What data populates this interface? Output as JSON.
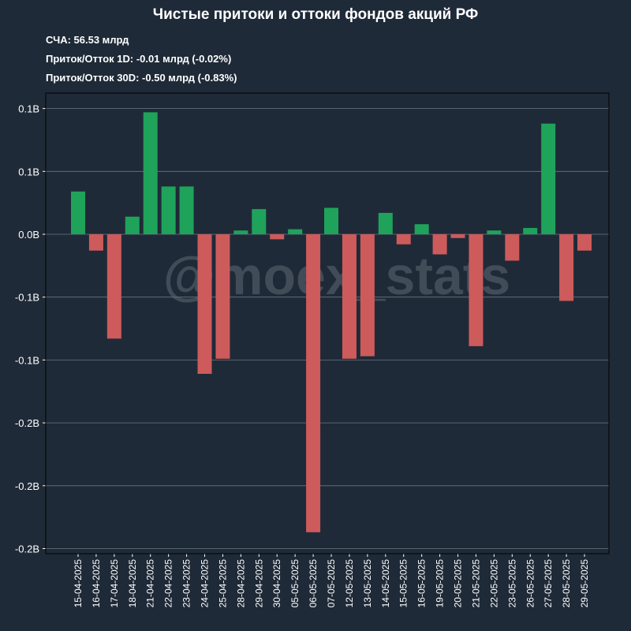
{
  "header": {
    "title": "Чистые притоки и оттоки фондов акций РФ",
    "aum": "СЧА: 56.53 млрд",
    "flow_1d": "Приток/Отток 1D: -0.01 млрд (-0.02%)",
    "flow_30d": "Приток/Отток 30D: -0.50 млрд (-0.83%)"
  },
  "watermark": "@moex_stats",
  "colors": {
    "background": "#1f2a38",
    "inflow": "#1fa35a",
    "outflow": "#cd5b5b",
    "grid": "#6b7682"
  },
  "chart_data": {
    "type": "bar",
    "title": "Чистые притоки и оттоки фондов акций РФ",
    "xlabel": "",
    "ylabel": "",
    "ylim": [
      -0.25,
      0.1
    ],
    "grid": true,
    "y_ticks": [
      {
        "value": 0.1,
        "label": "0.1B"
      },
      {
        "value": 0.05,
        "label": "0.1B"
      },
      {
        "value": 0.0,
        "label": "0.0B"
      },
      {
        "value": -0.05,
        "label": "-0.1B"
      },
      {
        "value": -0.1,
        "label": "-0.1B"
      },
      {
        "value": -0.15,
        "label": "-0.2B"
      },
      {
        "value": -0.2,
        "label": "-0.2B"
      },
      {
        "value": -0.25,
        "label": "-0.2B"
      }
    ],
    "categories": [
      "15-04-2025",
      "16-04-2025",
      "17-04-2025",
      "18-04-2025",
      "21-04-2025",
      "22-04-2025",
      "23-04-2025",
      "24-04-2025",
      "25-04-2025",
      "28-04-2025",
      "29-04-2025",
      "30-04-2025",
      "05-05-2025",
      "06-05-2025",
      "07-05-2025",
      "12-05-2025",
      "13-05-2025",
      "14-05-2025",
      "15-05-2025",
      "16-05-2025",
      "19-05-2025",
      "20-05-2025",
      "21-05-2025",
      "22-05-2025",
      "23-05-2025",
      "26-05-2025",
      "27-05-2025",
      "28-05-2025",
      "29-05-2025"
    ],
    "values": [
      0.034,
      -0.013,
      -0.083,
      0.014,
      0.097,
      0.038,
      0.038,
      -0.111,
      -0.099,
      0.003,
      0.02,
      -0.004,
      0.004,
      -0.237,
      0.021,
      -0.099,
      -0.097,
      0.017,
      -0.008,
      0.008,
      -0.016,
      -0.003,
      -0.089,
      0.003,
      -0.021,
      0.005,
      0.088,
      -0.053,
      -0.013
    ]
  }
}
